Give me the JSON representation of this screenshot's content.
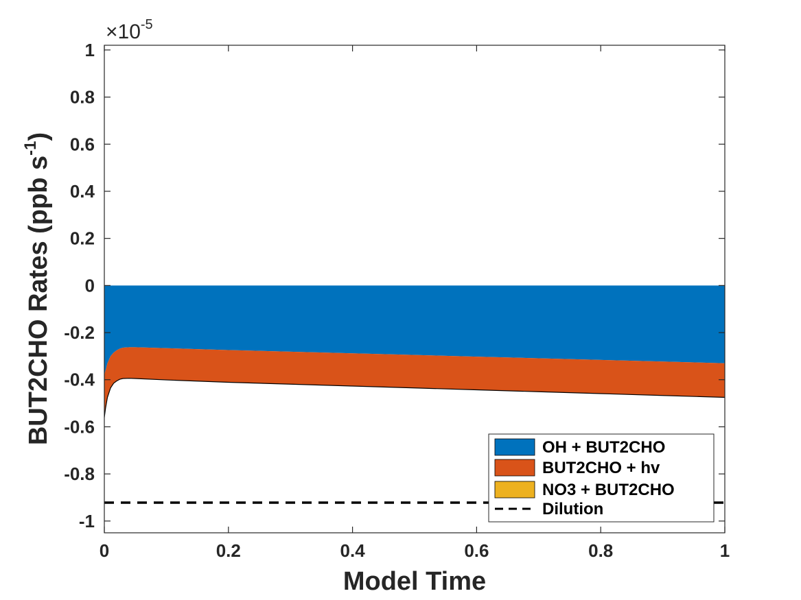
{
  "chart_data": {
    "type": "area",
    "title": "",
    "xlabel": "Model Time",
    "ylabel": "BUT2CHO Rates (ppb s^-1)",
    "ylabel_text": "BUT2CHO Rates (ppb s",
    "ylabel_superscript": "-1",
    "ylabel_suffix": ")",
    "y_exponent_multiplier": "×10",
    "y_exponent": "-5",
    "xlim": [
      0,
      1
    ],
    "ylim": [
      -1.05,
      1.02
    ],
    "x_ticks": [
      0,
      0.2,
      0.4,
      0.6,
      0.8,
      1
    ],
    "x_tick_labels": [
      "0",
      "0.2",
      "0.4",
      "0.6",
      "0.8",
      "1"
    ],
    "y_ticks": [
      -1,
      -0.8,
      -0.6,
      -0.4,
      -0.2,
      0,
      0.2,
      0.4,
      0.6,
      0.8,
      1
    ],
    "y_tick_labels": [
      "-1",
      "-0.8",
      "-0.6",
      "-0.4",
      "-0.2",
      "0",
      "0.2",
      "0.4",
      "0.6",
      "0.8",
      "1"
    ],
    "x": [
      0,
      0.002,
      0.005,
      0.01,
      0.015,
      0.02,
      0.025,
      0.03,
      0.04,
      0.05,
      0.1,
      0.2,
      0.3,
      0.4,
      0.5,
      0.6,
      0.7,
      0.8,
      0.9,
      1.0
    ],
    "series": [
      {
        "name": "OH + BUT2CHO",
        "color": "#0072BD",
        "values": [
          -0.38,
          -0.36,
          -0.33,
          -0.3,
          -0.285,
          -0.275,
          -0.268,
          -0.264,
          -0.262,
          -0.262,
          -0.266,
          -0.274,
          -0.281,
          -0.288,
          -0.295,
          -0.302,
          -0.309,
          -0.316,
          -0.323,
          -0.33
        ]
      },
      {
        "name": "BUT2CHO + hv",
        "color": "#D95319",
        "values": [
          -0.18,
          -0.16,
          -0.145,
          -0.135,
          -0.13,
          -0.13,
          -0.13,
          -0.131,
          -0.132,
          -0.133,
          -0.135,
          -0.137,
          -0.138,
          -0.139,
          -0.14,
          -0.141,
          -0.142,
          -0.143,
          -0.144,
          -0.145
        ]
      },
      {
        "name": "NO3 + BUT2CHO",
        "color": "#EDB120",
        "values": [
          0,
          0,
          0,
          0,
          0,
          0,
          0,
          0,
          0,
          0,
          0,
          0,
          0,
          0,
          0,
          0,
          0,
          0,
          0,
          0
        ]
      }
    ],
    "lines": [
      {
        "name": "Dilution",
        "color": "#000000",
        "style": "dashed",
        "value": -0.922
      }
    ],
    "legend": {
      "location": "bottom-right",
      "entries": [
        "OH + BUT2CHO",
        "BUT2CHO + hv",
        "NO3 + BUT2CHO",
        "Dilution"
      ]
    }
  }
}
